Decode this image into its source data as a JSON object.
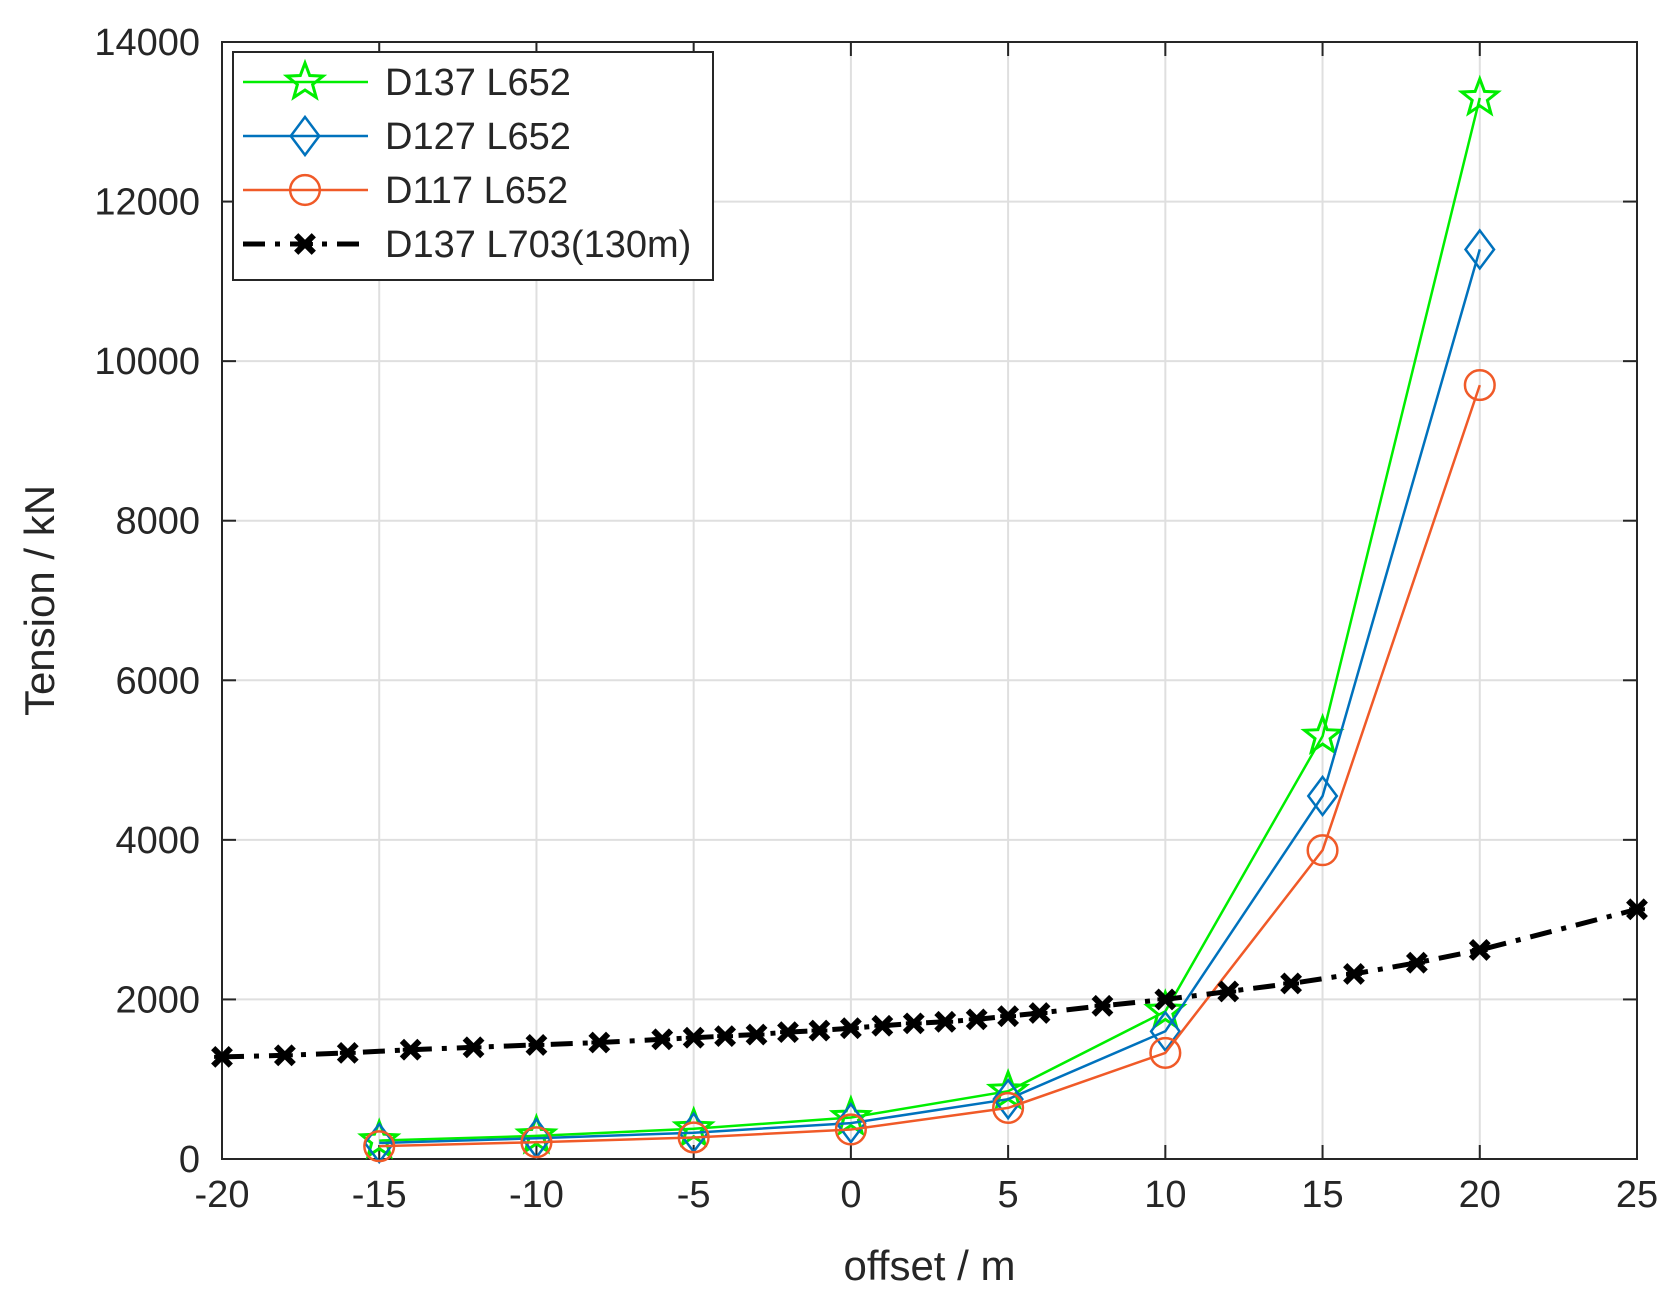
{
  "chart_data": {
    "type": "line",
    "title": "",
    "xlabel": "offset / m",
    "ylabel": "Tension / kN",
    "xlim": [
      -20,
      25
    ],
    "ylim": [
      0,
      14000
    ],
    "xticks": [
      -20,
      -15,
      -10,
      -5,
      0,
      5,
      10,
      15,
      20,
      25
    ],
    "yticks": [
      0,
      2000,
      4000,
      6000,
      8000,
      10000,
      12000,
      14000
    ],
    "grid": true,
    "legend_position": "top-left",
    "series": [
      {
        "name": "D137 L652",
        "color": "#00ee00",
        "marker": "star",
        "line_style": "solid",
        "x": [
          -15,
          -10,
          -5,
          0,
          5,
          10,
          15,
          20
        ],
        "y": [
          230,
          290,
          380,
          520,
          850,
          1850,
          5300,
          13300
        ]
      },
      {
        "name": "D127 L652",
        "color": "#0072bd",
        "marker": "diamond",
        "line_style": "solid",
        "x": [
          -15,
          -10,
          -5,
          0,
          5,
          10,
          15,
          20
        ],
        "y": [
          200,
          260,
          330,
          450,
          750,
          1600,
          4550,
          11400
        ]
      },
      {
        "name": "D117 L652",
        "color": "#f05a28",
        "marker": "circle",
        "line_style": "solid",
        "x": [
          -15,
          -10,
          -5,
          0,
          5,
          10,
          15,
          20
        ],
        "y": [
          160,
          210,
          270,
          370,
          640,
          1330,
          3870,
          9700
        ]
      },
      {
        "name": "D137 L703(130m)",
        "color": "#000000",
        "marker": "x",
        "line_style": "dash-dot",
        "x": [
          -20,
          -18,
          -16,
          -14,
          -12,
          -10,
          -8,
          -6,
          -5,
          -4,
          -3,
          -2,
          -1,
          0,
          1,
          2,
          3,
          4,
          5,
          6,
          8,
          10,
          12,
          14,
          16,
          18,
          20,
          25
        ],
        "y": [
          1280,
          1300,
          1330,
          1370,
          1400,
          1430,
          1460,
          1500,
          1520,
          1540,
          1560,
          1590,
          1610,
          1640,
          1670,
          1700,
          1720,
          1750,
          1790,
          1830,
          1920,
          2000,
          2100,
          2200,
          2320,
          2460,
          2620,
          3130
        ]
      }
    ]
  }
}
